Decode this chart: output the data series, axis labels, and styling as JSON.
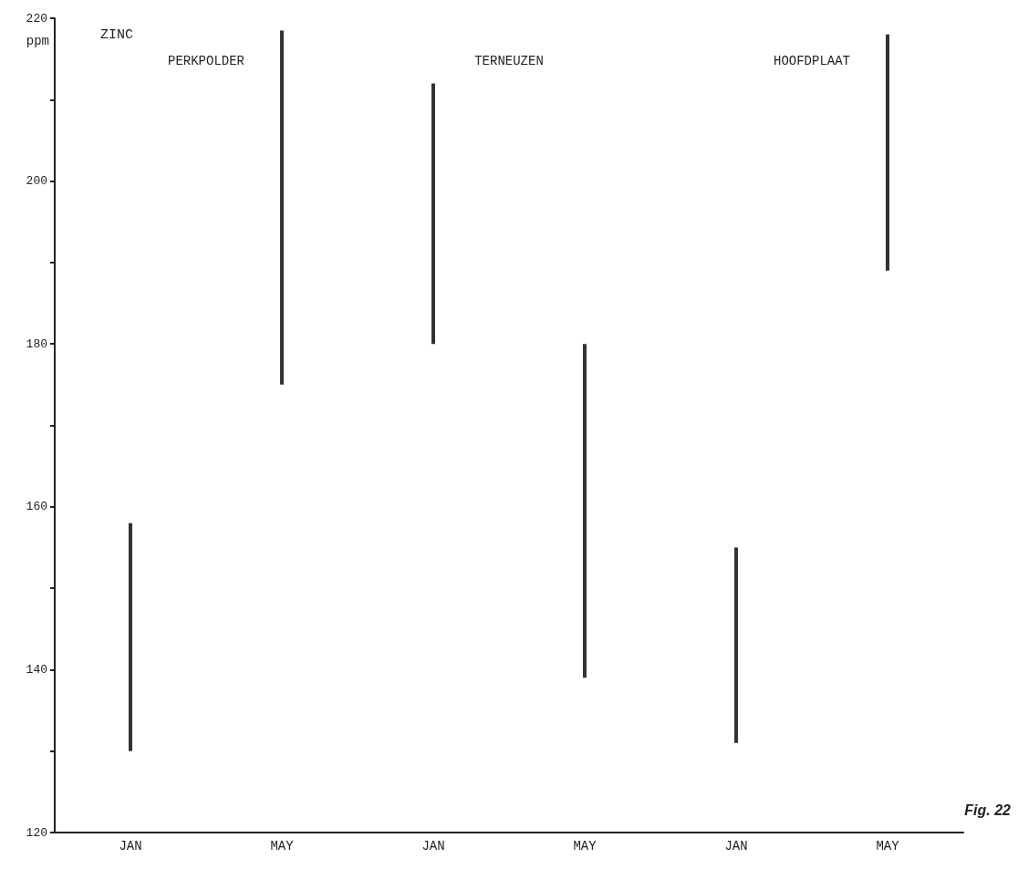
{
  "chart_data": {
    "type": "bar",
    "title": "ZINC",
    "ylabel": "ppm",
    "categories": [
      "JAN",
      "MAY",
      "JAN",
      "MAY",
      "JAN",
      "MAY"
    ],
    "base": [
      130,
      175,
      180,
      139,
      131,
      189
    ],
    "values": [
      28,
      43.5,
      32,
      41,
      24,
      29
    ],
    "color": "#333333",
    "ylim": [
      120,
      220
    ],
    "yticks": [
      120,
      {
        "value": 130,
        "label": null
      },
      140,
      {
        "value": 150,
        "label": null
      },
      160,
      {
        "value": 170,
        "label": null
      },
      180,
      {
        "value": 190,
        "label": null
      },
      200,
      {
        "value": 210,
        "label": null
      },
      220
    ],
    "annotations": [
      "PERKPOLDER",
      "TERNEUZEN",
      "HOOFDPLAAT",
      "Fig. 22"
    ]
  }
}
